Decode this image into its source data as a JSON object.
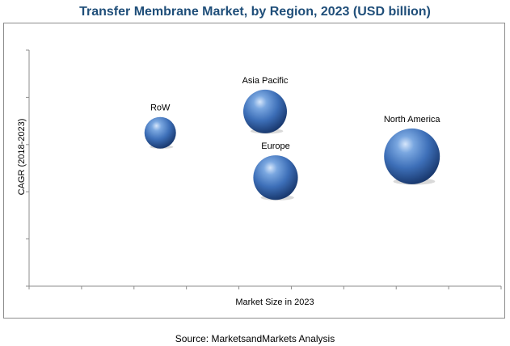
{
  "chart_data": {
    "type": "scatter",
    "title": "Transfer Membrane Market, by Region, 2023 (USD billion)",
    "xlabel": "Market Size in 2023",
    "ylabel": "CAGR (2018-2023)",
    "tick_labels_shown": false,
    "grid": false,
    "series": [
      {
        "points": [
          {
            "label": "RoW",
            "x": 2.5,
            "y": 6.5,
            "size": 0.65
          },
          {
            "label": "Asia Pacific",
            "x": 4.5,
            "y": 7.4,
            "size": 0.9
          },
          {
            "label": "Europe",
            "x": 4.7,
            "y": 4.6,
            "size": 0.92
          },
          {
            "label": "North America",
            "x": 7.3,
            "y": 5.5,
            "size": 1.15
          }
        ]
      }
    ],
    "xlim": [
      0,
      9
    ],
    "ylim": [
      0,
      10
    ],
    "bubble_color": "#4a7fc8"
  },
  "source": "Source: MarketsandMarkets Analysis"
}
